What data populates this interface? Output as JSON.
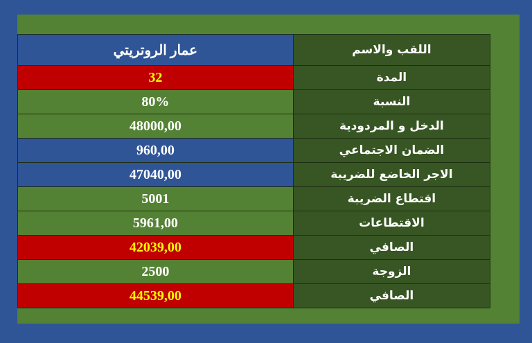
{
  "colors": {
    "background": "#2f5597",
    "panel": "#548235",
    "label_cell": "#375623",
    "red": "#c00000",
    "highlight_text": "#ffff00"
  },
  "header": {
    "label": "اللقب والاسم",
    "value": "عمار الروتريتي"
  },
  "rows": [
    {
      "label": "المدة",
      "value": "32",
      "style": "red"
    },
    {
      "label": "النسبة",
      "value": "80%",
      "style": "green"
    },
    {
      "label": "الدخل و المردودية",
      "value": "48000,00",
      "style": "green"
    },
    {
      "label": "الضمان الاجتماعي",
      "value": "960,00",
      "style": "blue"
    },
    {
      "label": "الاجر الخاضع للضريبة",
      "value": "47040,00",
      "style": "blue"
    },
    {
      "label": "اقتطاع الضريبة",
      "value": "5001",
      "style": "green"
    },
    {
      "label": "الاقتطاعات",
      "value": "5961,00",
      "style": "green"
    },
    {
      "label": "الصافي",
      "value": "42039,00",
      "style": "red"
    },
    {
      "label": "الزوجة",
      "value": "2500",
      "style": "green"
    },
    {
      "label": "الصافي",
      "value": "44539,00",
      "style": "red"
    }
  ]
}
